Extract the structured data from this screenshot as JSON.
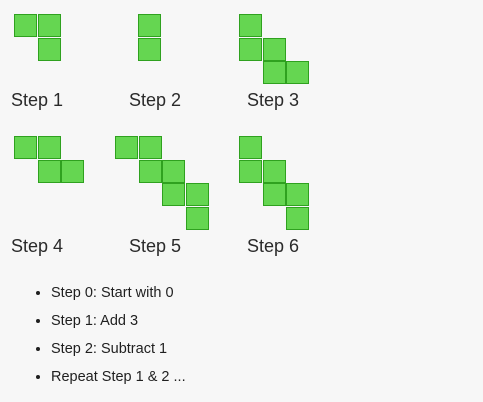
{
  "steps": [
    {
      "label": "Step 1",
      "cells": [
        [
          0,
          0
        ],
        [
          1,
          0
        ],
        [
          1,
          1
        ]
      ]
    },
    {
      "label": "Step 2",
      "cells": [
        [
          0,
          0
        ],
        [
          0,
          1
        ]
      ]
    },
    {
      "label": "Step 3",
      "cells": [
        [
          0,
          0
        ],
        [
          0,
          1
        ],
        [
          1,
          1
        ],
        [
          1,
          2
        ],
        [
          2,
          2
        ]
      ]
    },
    {
      "label": "Step 4",
      "cells": [
        [
          0,
          0
        ],
        [
          1,
          0
        ],
        [
          1,
          1
        ],
        [
          2,
          1
        ]
      ]
    },
    {
      "label": "Step 5",
      "cells": [
        [
          0,
          0
        ],
        [
          1,
          0
        ],
        [
          1,
          1
        ],
        [
          2,
          1
        ],
        [
          2,
          2
        ],
        [
          3,
          2
        ],
        [
          3,
          3
        ]
      ]
    },
    {
      "label": "Step 6",
      "cells": [
        [
          0,
          0
        ],
        [
          0,
          1
        ],
        [
          1,
          1
        ],
        [
          1,
          2
        ],
        [
          2,
          2
        ],
        [
          2,
          3
        ]
      ]
    }
  ],
  "rules": [
    "Step 0: Start with 0",
    "Step 1: Add 3",
    "Step 2: Subtract 1",
    "Repeat Step 1 & 2 ..."
  ],
  "colors": {
    "fill": "#65d651",
    "stroke": "#2fa11f"
  }
}
